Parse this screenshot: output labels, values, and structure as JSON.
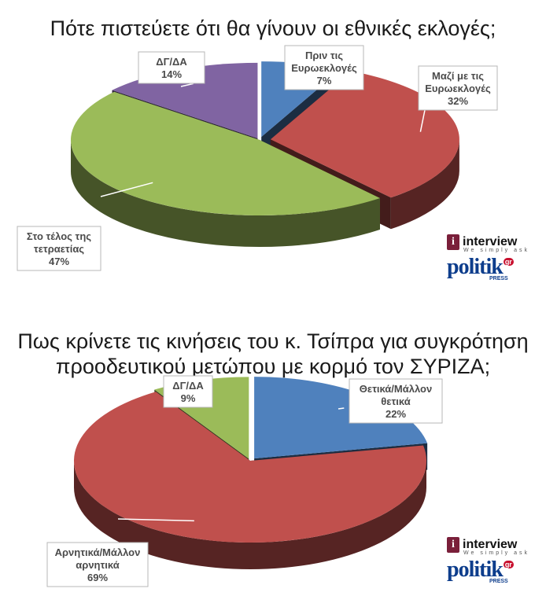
{
  "chart_data": [
    {
      "type": "pie",
      "title": "Πότε πιστεύετε ότι θα γίνουν οι εθνικές εκλογές;",
      "slices": [
        {
          "label_lines": [
            "Πριν τις",
            "Ευρωεκλογές"
          ],
          "percent_text": "7%",
          "value": 7,
          "color": "#4f81bd"
        },
        {
          "label_lines": [
            "Μαζί με τις",
            "Ευρωεκλογές"
          ],
          "percent_text": "32%",
          "value": 32,
          "color": "#c0504d"
        },
        {
          "label_lines": [
            "Στο τέλος της",
            "τετραετίας"
          ],
          "percent_text": "47%",
          "value": 47,
          "color": "#9bbb59"
        },
        {
          "label_lines": [
            "ΔΓ/ΔΑ"
          ],
          "percent_text": "14%",
          "value": 14,
          "color": "#8064a2"
        }
      ]
    },
    {
      "type": "pie",
      "title_lines": [
        "Πως κρίνετε τις κινήσεις του κ. Τσίπρα για συγκρότηση",
        "προοδευτικού μετώπου με κορμό τον ΣΥΡΙΖΑ;"
      ],
      "slices": [
        {
          "label_lines": [
            "Θετικά/Μάλλον",
            "θετικά"
          ],
          "percent_text": "22%",
          "value": 22,
          "color": "#4f81bd"
        },
        {
          "label_lines": [
            "Αρνητικά/Μάλλον",
            "αρνητικά"
          ],
          "percent_text": "69%",
          "value": 69,
          "color": "#c0504d"
        },
        {
          "label_lines": [
            "ΔΓ/ΔΑ"
          ],
          "percent_text": "9%",
          "value": 9,
          "color": "#9bbb59"
        }
      ]
    }
  ],
  "logos": [
    {
      "brand": "interview",
      "tagline": "We simply ask",
      "press_brand": "politik",
      "press_suffix": "gr",
      "press_sub": "PRESS"
    },
    {
      "brand": "interview",
      "tagline": "We simply ask",
      "press_brand": "politik",
      "press_suffix": "gr",
      "press_sub": "PRESS"
    }
  ]
}
